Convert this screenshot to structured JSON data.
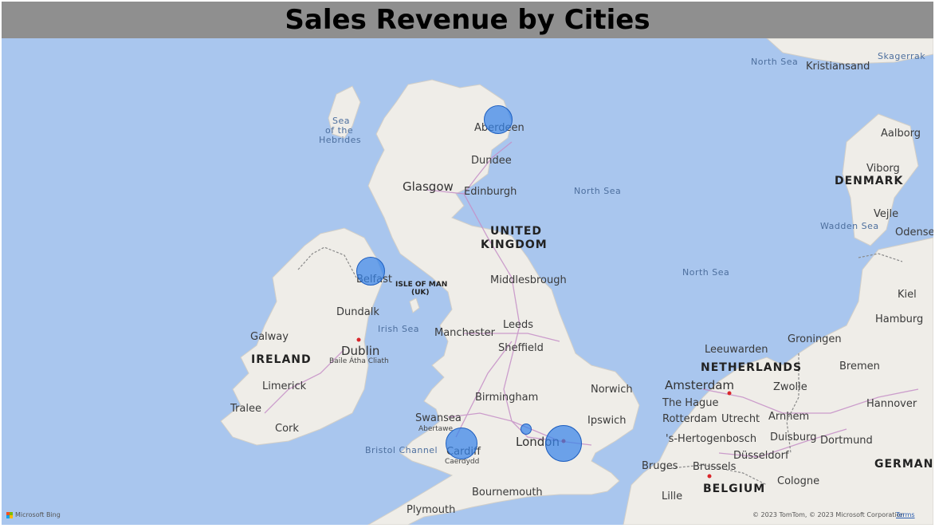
{
  "title": "Sales Revenue by Cities",
  "map": {
    "cities": [
      {
        "name": "Aberdeen",
        "cls": "city"
      },
      {
        "name": "Dundee",
        "cls": "city"
      },
      {
        "name": "Glasgow",
        "cls": "city-big"
      },
      {
        "name": "Edinburgh",
        "cls": "city"
      },
      {
        "name": "Belfast",
        "cls": "city"
      },
      {
        "name": "Middlesbrough",
        "cls": "city"
      },
      {
        "name": "Dundalk",
        "cls": "city"
      },
      {
        "name": "Galway",
        "cls": "city"
      },
      {
        "name": "Dublin",
        "cls": "city-big"
      },
      {
        "name": "Manchester",
        "cls": "city"
      },
      {
        "name": "Leeds",
        "cls": "city"
      },
      {
        "name": "Sheffield",
        "cls": "city"
      },
      {
        "name": "Limerick",
        "cls": "city"
      },
      {
        "name": "Tralee",
        "cls": "city"
      },
      {
        "name": "Cork",
        "cls": "city"
      },
      {
        "name": "Birmingham",
        "cls": "city"
      },
      {
        "name": "Norwich",
        "cls": "city"
      },
      {
        "name": "Ipswich",
        "cls": "city"
      },
      {
        "name": "Swansea",
        "cls": "city"
      },
      {
        "name": "Abertawe",
        "cls": "sub"
      },
      {
        "name": "Cardiff",
        "cls": "city"
      },
      {
        "name": "Caerdydd",
        "cls": "sub"
      },
      {
        "name": "London",
        "cls": "city-big"
      },
      {
        "name": "Plymouth",
        "cls": "city"
      },
      {
        "name": "Bournemouth",
        "cls": "city"
      },
      {
        "name": "Amsterdam",
        "cls": "city-big"
      },
      {
        "name": "The Hague",
        "cls": "city"
      },
      {
        "name": "Rotterdam",
        "cls": "city"
      },
      {
        "name": "Utrecht",
        "cls": "city"
      },
      {
        "name": "Arnhem",
        "cls": "city"
      },
      {
        "name": "Leeuwarden",
        "cls": "city"
      },
      {
        "name": "Groningen",
        "cls": "city"
      },
      {
        "name": "Zwolle",
        "cls": "city"
      },
      {
        "name": "Bremen",
        "cls": "city"
      },
      {
        "name": "Hamburg",
        "cls": "city"
      },
      {
        "name": "Hannover",
        "cls": "city"
      },
      {
        "name": "Dortmund",
        "cls": "city"
      },
      {
        "name": "Duisburg",
        "cls": "city"
      },
      {
        "name": "Düsseldorf",
        "cls": "city"
      },
      {
        "name": "Cologne",
        "cls": "city"
      },
      {
        "name": "'s-Hertogenbosch",
        "cls": "city"
      },
      {
        "name": "Bruges",
        "cls": "city"
      },
      {
        "name": "Brussels",
        "cls": "city"
      },
      {
        "name": "Lille",
        "cls": "city"
      },
      {
        "name": "Kiel",
        "cls": "city"
      },
      {
        "name": "Odense",
        "cls": "city"
      },
      {
        "name": "Vejle",
        "cls": "city"
      },
      {
        "name": "Viborg",
        "cls": "city"
      },
      {
        "name": "Aalborg",
        "cls": "city"
      },
      {
        "name": "Kristiansand",
        "cls": "city"
      },
      {
        "name": "Baile Átha Cliath",
        "cls": "sub"
      }
    ],
    "countries": [
      "UNITED",
      "KINGDOM",
      "IRELAND",
      "NETHERLANDS",
      "DENMARK",
      "BELGIUM",
      "GERMAN"
    ],
    "regions": [
      "ISLE OF MAN",
      "(UK)"
    ],
    "seas": [
      "North Sea",
      "North Sea",
      "North Sea",
      "Sea",
      "of the",
      "Hebrides",
      "Irish Sea",
      "Bristol Channel",
      "Wadden Sea",
      "Skagerrak"
    ],
    "revenue_bubbles": [
      {
        "city": "Aberdeen",
        "relative_size": 0.53
      },
      {
        "city": "Belfast",
        "relative_size": 0.53
      },
      {
        "city": "Cardiff",
        "relative_size": 0.6
      },
      {
        "city": "Oxford area (unlabeled)",
        "relative_size": 0.23
      },
      {
        "city": "London",
        "relative_size": 0.67
      }
    ],
    "bubble_color": "#3783e9",
    "water_color": "#a9c6ee",
    "land_color": "#efede8"
  },
  "attribution": {
    "bing": "Microsoft Bing",
    "copyright": "© 2023 TomTom, © 2023 Microsoft Corporation",
    "terms": "Terms"
  }
}
